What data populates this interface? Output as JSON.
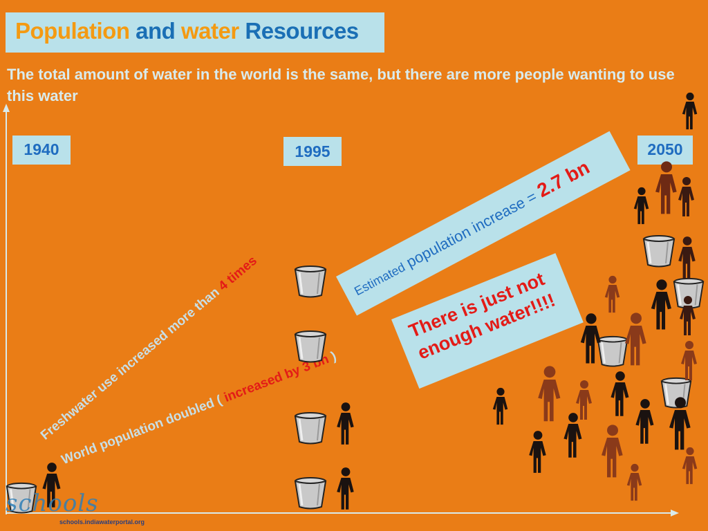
{
  "title": {
    "word1": "Population",
    "word2": "and",
    "word3": "water",
    "word4": "Resources"
  },
  "subtitle": "The total amount of water in the world is the same, but there are more people wanting to use this water",
  "years": [
    "1940",
    "1995",
    "2050"
  ],
  "annotations": {
    "freshwater_prefix": "Freshwater use increased more than ",
    "freshwater_highlight": "4 times",
    "population_prefix": "World population doubled ( ",
    "population_highlight": "increased by 3 bn",
    "population_suffix": " )",
    "estimate_part1": "Estimated",
    "estimate_part2": " population increase = ",
    "estimate_value": "2.7 bn",
    "warning": "There is just not enough water!!!!"
  },
  "logo": {
    "text": "schools",
    "url": "schools.indiawaterportal.org"
  },
  "colors": {
    "background": "#ea7d16",
    "panel": "#b9e1ea",
    "accent_blue": "#1f6cc0",
    "highlight_red": "#e31b17",
    "light_text": "#d9ebec"
  },
  "icons": [
    "bucket-icon",
    "person-icon"
  ]
}
